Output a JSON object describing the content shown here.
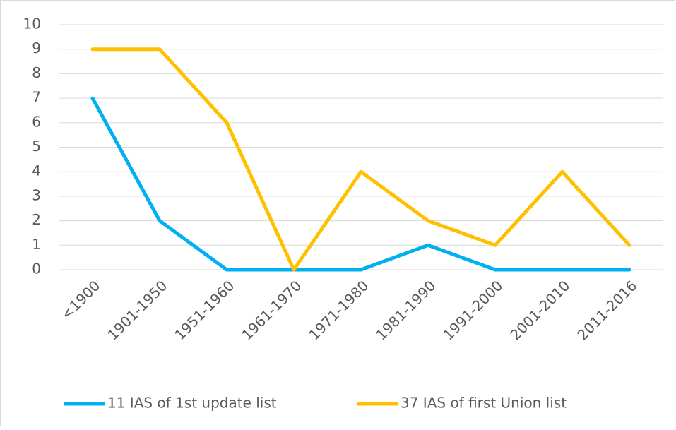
{
  "chart_data": {
    "type": "line",
    "categories": [
      "<1900",
      "1901-1950",
      "1951-1960",
      "1961-1970",
      "1971-1980",
      "1981-1990",
      "1991-2000",
      "2001-2010",
      "2011-2016"
    ],
    "series": [
      {
        "name": "11 IAS of 1st update list",
        "color": "#00b0f0",
        "values": [
          7,
          2,
          0,
          0,
          0,
          1,
          0,
          0,
          0
        ]
      },
      {
        "name": "37 IAS of first Union list",
        "color": "#ffc000",
        "values": [
          9,
          9,
          6,
          0,
          4,
          2,
          1,
          4,
          1
        ]
      }
    ],
    "ylim": [
      0,
      10
    ],
    "yticks": [
      0,
      1,
      2,
      3,
      4,
      5,
      6,
      7,
      8,
      9,
      10
    ],
    "grid": true,
    "legend": "bottom"
  }
}
